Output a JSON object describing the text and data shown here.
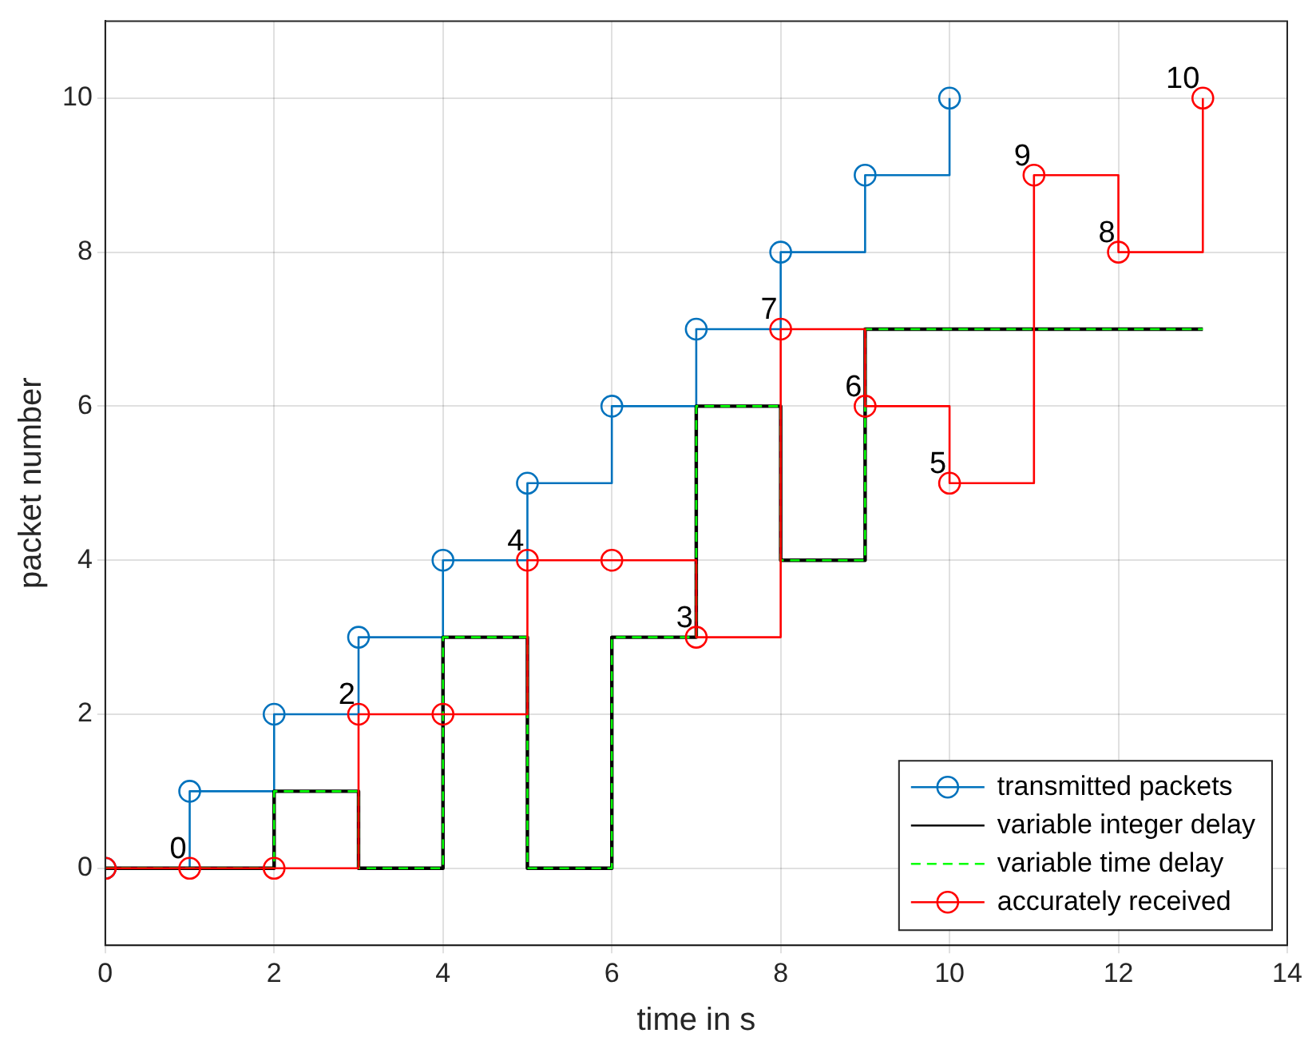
{
  "chart_data": {
    "type": "step",
    "xlabel": "time in s",
    "ylabel": "packet number",
    "x": [
      0,
      1,
      2,
      3,
      4,
      5,
      6,
      7,
      8,
      9,
      10,
      11,
      12,
      13
    ],
    "series": [
      {
        "name": "transmitted packets",
        "color": "#0072bd",
        "marker": "circle",
        "line_style": "solid",
        "x": [
          0,
          1,
          2,
          3,
          4,
          5,
          6,
          7,
          8,
          9,
          10
        ],
        "values": [
          0,
          1,
          2,
          3,
          4,
          5,
          6,
          7,
          8,
          9,
          10
        ]
      },
      {
        "name": "variable integer delay",
        "color": "#000000",
        "marker": "none",
        "line_style": "solid",
        "values": [
          0,
          0,
          1,
          0,
          3,
          0,
          3,
          6,
          4,
          7,
          7,
          7,
          7,
          7
        ]
      },
      {
        "name": "variable time delay",
        "color": "#00ff00",
        "marker": "none",
        "line_style": "dashed",
        "values": [
          0,
          0,
          1,
          0,
          3,
          0,
          3,
          6,
          4,
          7,
          7,
          7,
          7,
          7
        ]
      },
      {
        "name": "accurately received",
        "color": "#ff0000",
        "marker": "circle",
        "line_style": "solid",
        "values": [
          0,
          0,
          0,
          2,
          2,
          4,
          4,
          3,
          7,
          6,
          5,
          9,
          8,
          10
        ],
        "value_labels": [
          null,
          "0",
          null,
          "2",
          null,
          "4",
          null,
          "3",
          "7",
          "6",
          "5",
          "9",
          "8",
          "10"
        ]
      }
    ],
    "xlim": [
      0,
      14
    ],
    "xticks": [
      0,
      2,
      4,
      6,
      8,
      10,
      12,
      14
    ],
    "ylim": [
      -1,
      11
    ],
    "yticks": [
      0,
      2,
      4,
      6,
      8,
      10
    ],
    "grid": true,
    "legend": "bottom right"
  }
}
